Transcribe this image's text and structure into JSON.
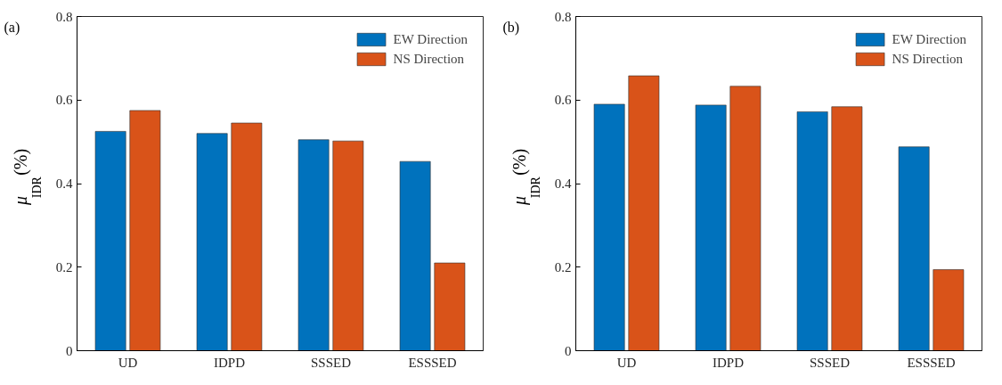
{
  "chart_data": [
    {
      "type": "bar",
      "title": "(a)",
      "ylabel": "μ$_{IDR}$ (%)",
      "categories": [
        "UD",
        "IDPD",
        "SSSED",
        "ESSSED"
      ],
      "series": [
        {
          "name": "EW Direction",
          "color": "#0072bd",
          "values": [
            0.525,
            0.52,
            0.505,
            0.453
          ]
        },
        {
          "name": "NS Direction",
          "color": "#d95319",
          "values": [
            0.575,
            0.545,
            0.502,
            0.21
          ]
        }
      ],
      "ylim": [
        0,
        0.8
      ],
      "yticks": [
        0,
        0.2,
        0.4,
        0.6,
        0.8
      ],
      "grid": false,
      "legend": "top right"
    },
    {
      "type": "bar",
      "title": "(b)",
      "ylabel": "μ$_{IDR}$ (%)",
      "categories": [
        "UD",
        "IDPD",
        "SSSED",
        "ESSSED"
      ],
      "series": [
        {
          "name": "EW Direction",
          "color": "#0072bd",
          "values": [
            0.59,
            0.588,
            0.572,
            0.488
          ]
        },
        {
          "name": "NS Direction",
          "color": "#d95319",
          "values": [
            0.658,
            0.633,
            0.584,
            0.194
          ]
        }
      ],
      "ylim": [
        0,
        0.8
      ],
      "yticks": [
        0,
        0.2,
        0.4,
        0.6,
        0.8
      ],
      "grid": false,
      "legend": "top right"
    }
  ]
}
